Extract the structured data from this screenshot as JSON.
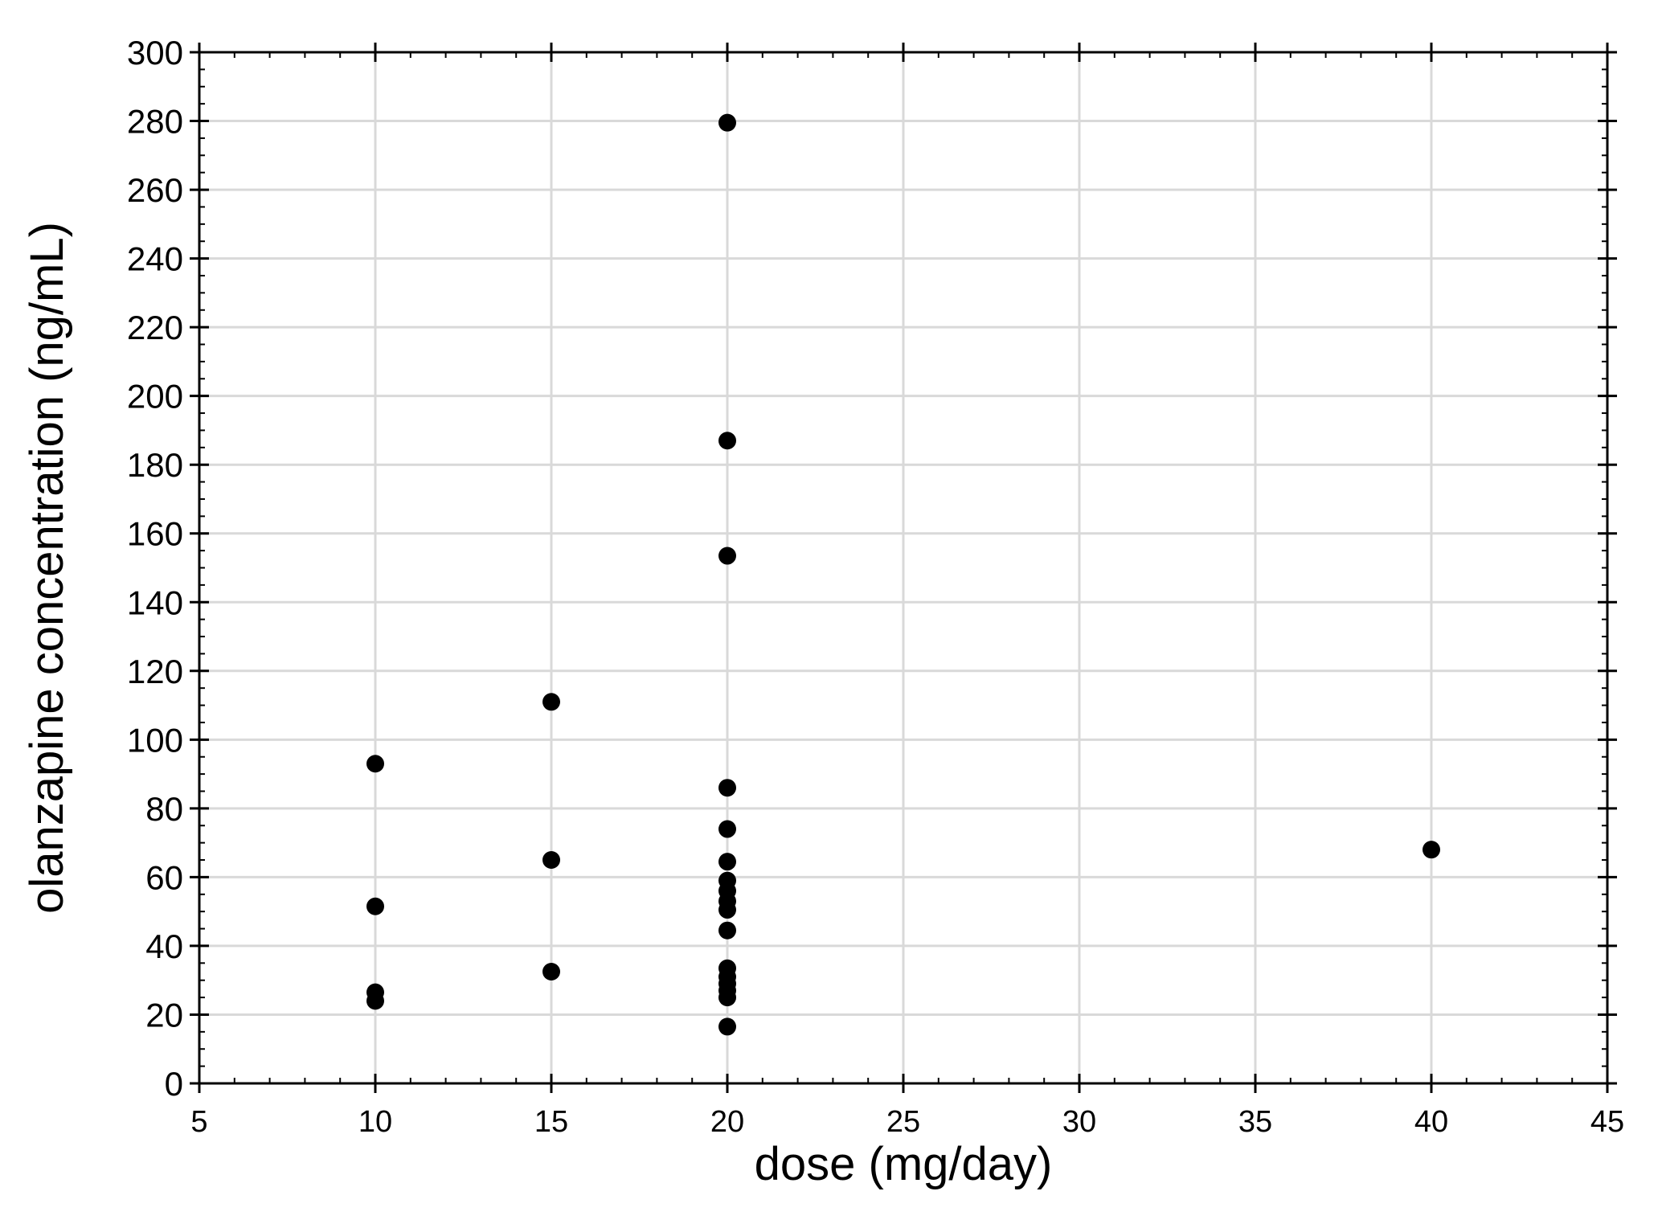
{
  "chart_data": {
    "type": "scatter",
    "title": "",
    "xlabel": "dose (mg/day)",
    "ylabel": "olanzapine concentration (ng/mL)",
    "xlim": [
      5,
      45
    ],
    "ylim": [
      0,
      300
    ],
    "xticks": [
      5,
      10,
      15,
      20,
      25,
      30,
      35,
      40,
      45
    ],
    "yticks": [
      0,
      20,
      40,
      60,
      80,
      100,
      120,
      140,
      160,
      180,
      200,
      220,
      240,
      260,
      280,
      300
    ],
    "grid": true,
    "legend": "none",
    "marker_color": "#000000",
    "grid_color": "#d9d9d9",
    "series": [
      {
        "points": [
          {
            "x": 10,
            "y": 93
          },
          {
            "x": 10,
            "y": 51.5
          },
          {
            "x": 10,
            "y": 26.5
          },
          {
            "x": 10,
            "y": 24
          },
          {
            "x": 15,
            "y": 111
          },
          {
            "x": 15,
            "y": 65
          },
          {
            "x": 15,
            "y": 32.5
          },
          {
            "x": 20,
            "y": 279.5
          },
          {
            "x": 20,
            "y": 187
          },
          {
            "x": 20,
            "y": 153.5
          },
          {
            "x": 20,
            "y": 86
          },
          {
            "x": 20,
            "y": 74
          },
          {
            "x": 20,
            "y": 64.5
          },
          {
            "x": 20,
            "y": 59
          },
          {
            "x": 20,
            "y": 56
          },
          {
            "x": 20,
            "y": 53
          },
          {
            "x": 20,
            "y": 50.5
          },
          {
            "x": 20,
            "y": 44.5
          },
          {
            "x": 20,
            "y": 33.5
          },
          {
            "x": 20,
            "y": 31
          },
          {
            "x": 20,
            "y": 29
          },
          {
            "x": 20,
            "y": 27
          },
          {
            "x": 20,
            "y": 25
          },
          {
            "x": 20,
            "y": 16.5
          },
          {
            "x": 40,
            "y": 68
          }
        ]
      }
    ]
  }
}
